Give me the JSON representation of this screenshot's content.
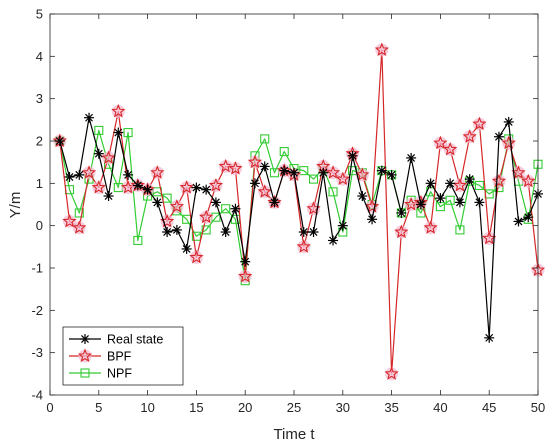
{
  "chart_data": {
    "type": "line",
    "title": "",
    "xlabel": "Time t",
    "ylabel": "Y/m",
    "xlim": [
      0,
      50
    ],
    "ylim": [
      -4,
      5
    ],
    "xticks": [
      0,
      5,
      10,
      15,
      20,
      25,
      30,
      35,
      40,
      45,
      50
    ],
    "yticks": [
      -4,
      -3,
      -2,
      -1,
      0,
      1,
      2,
      3,
      4,
      5
    ],
    "grid": false,
    "legend_position": "bottom-left",
    "x": [
      1,
      2,
      3,
      4,
      5,
      6,
      7,
      8,
      9,
      10,
      11,
      12,
      13,
      14,
      15,
      16,
      17,
      18,
      19,
      20,
      21,
      22,
      23,
      24,
      25,
      26,
      27,
      28,
      29,
      30,
      31,
      32,
      33,
      34,
      35,
      36,
      37,
      38,
      39,
      40,
      41,
      42,
      43,
      44,
      45,
      46,
      47,
      48,
      49,
      50
    ],
    "series": [
      {
        "name": "Real state",
        "color": "#000000",
        "marker": "asterisk",
        "values": [
          2.0,
          1.15,
          1.2,
          2.55,
          1.7,
          0.7,
          2.2,
          1.2,
          0.95,
          0.85,
          0.55,
          -0.15,
          -0.1,
          -0.55,
          0.9,
          0.85,
          0.55,
          -0.15,
          0.4,
          -0.85,
          1.0,
          1.4,
          0.55,
          1.3,
          1.25,
          -0.15,
          -0.15,
          1.25,
          -0.35,
          0.0,
          1.65,
          0.7,
          0.15,
          1.3,
          1.2,
          0.3,
          1.6,
          0.5,
          1.0,
          0.65,
          1.0,
          0.55,
          1.1,
          0.55,
          -2.65,
          2.1,
          2.45,
          0.1,
          0.2,
          0.75
        ]
      },
      {
        "name": "BPF",
        "color": "#d62728",
        "marker": "star",
        "values": [
          2.0,
          0.1,
          -0.05,
          1.25,
          0.9,
          1.6,
          2.7,
          0.9,
          0.95,
          0.85,
          1.25,
          0.1,
          0.45,
          0.9,
          -0.75,
          0.2,
          0.95,
          1.4,
          1.35,
          -1.2,
          1.5,
          0.8,
          0.55,
          1.3,
          1.2,
          -0.5,
          0.4,
          1.4,
          1.25,
          1.1,
          1.7,
          1.2,
          0.45,
          4.15,
          -3.5,
          -0.15,
          0.5,
          0.55,
          -0.05,
          1.95,
          1.8,
          0.95,
          2.1,
          2.4,
          -0.3,
          1.05,
          1.95,
          1.25,
          1.05,
          -1.05
        ]
      },
      {
        "name": "NPF",
        "color": "#33cc33",
        "marker": "square",
        "values": [
          2.0,
          0.85,
          0.3,
          1.1,
          2.25,
          1.45,
          0.9,
          2.2,
          -0.35,
          0.7,
          0.8,
          0.65,
          0.35,
          0.15,
          -0.25,
          -0.1,
          0.2,
          0.4,
          0.15,
          -1.3,
          1.65,
          2.05,
          1.25,
          1.75,
          1.35,
          1.3,
          1.1,
          1.35,
          0.8,
          -0.15,
          1.3,
          1.25,
          0.5,
          1.3,
          1.2,
          0.3,
          0.6,
          0.3,
          0.8,
          0.45,
          0.6,
          -0.1,
          1.05,
          0.95,
          0.75,
          0.9,
          2.05,
          1.05,
          0.15,
          1.45
        ]
      }
    ]
  }
}
